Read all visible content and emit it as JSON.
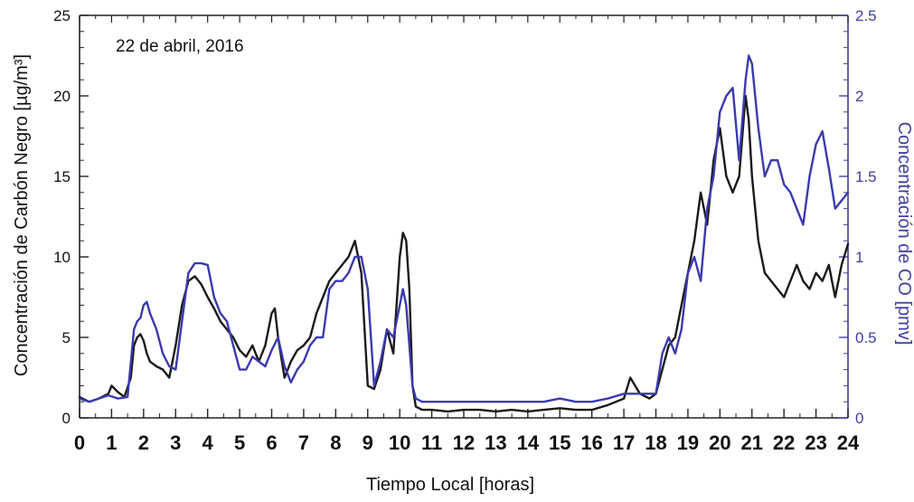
{
  "chart_data": {
    "type": "line",
    "annotation": "22 de abril, 2016",
    "xlabel": "Tiempo Local [horas]",
    "ylabel": "Concentración de Carbón Negro [µg/m³]",
    "y2label": "Concentración de CO [pmv]",
    "xlim": [
      0,
      24
    ],
    "ylim": [
      0,
      25
    ],
    "y2lim": [
      0,
      2.5
    ],
    "xticks": [
      "0",
      "1",
      "2",
      "3",
      "4",
      "5",
      "6",
      "7",
      "8",
      "9",
      "10",
      "11",
      "12",
      "13",
      "14",
      "15",
      "16",
      "17",
      "18",
      "19",
      "20",
      "21",
      "22",
      "23",
      "24"
    ],
    "yticks": [
      "0",
      "5",
      "10",
      "15",
      "20",
      "25"
    ],
    "y2ticks": [
      "0",
      "0.5",
      "1",
      "1.5",
      "2",
      "2.5"
    ],
    "grid": false,
    "colors": {
      "black_carbon": "#1a1a1a",
      "co": "#3a3ab0",
      "right_axis": "#4040a0"
    },
    "series": [
      {
        "axis": "left",
        "color": "#1a1a1a",
        "x": [
          0,
          0.3,
          0.6,
          0.9,
          1.0,
          1.2,
          1.4,
          1.6,
          1.7,
          1.8,
          1.9,
          2.0,
          2.1,
          2.2,
          2.4,
          2.6,
          2.8,
          3.0,
          3.2,
          3.4,
          3.6,
          3.8,
          4.0,
          4.2,
          4.4,
          4.6,
          4.8,
          5.0,
          5.2,
          5.4,
          5.6,
          5.8,
          6.0,
          6.1,
          6.2,
          6.4,
          6.6,
          6.8,
          7.0,
          7.2,
          7.4,
          7.6,
          7.8,
          8.0,
          8.2,
          8.4,
          8.6,
          8.8,
          9.0,
          9.2,
          9.4,
          9.6,
          9.8,
          10.0,
          10.1,
          10.2,
          10.3,
          10.4,
          10.5,
          10.7,
          11.0,
          11.5,
          12.0,
          12.5,
          13.0,
          13.5,
          14.0,
          14.5,
          15.0,
          15.5,
          16.0,
          16.5,
          17.0,
          17.2,
          17.5,
          17.8,
          18.0,
          18.2,
          18.4,
          18.6,
          18.8,
          19.0,
          19.2,
          19.4,
          19.6,
          19.8,
          20.0,
          20.2,
          20.4,
          20.6,
          20.8,
          20.9,
          21.0,
          21.2,
          21.4,
          21.6,
          21.8,
          22.0,
          22.2,
          22.4,
          22.6,
          22.8,
          23.0,
          23.2,
          23.4,
          23.6,
          23.8,
          24.0
        ],
        "values": [
          1.3,
          1.0,
          1.2,
          1.5,
          2.0,
          1.6,
          1.3,
          2.5,
          4.5,
          5.0,
          5.2,
          4.8,
          4.0,
          3.5,
          3.2,
          3.0,
          2.5,
          4.5,
          7.0,
          8.5,
          8.8,
          8.3,
          7.5,
          6.8,
          6.0,
          5.5,
          5.0,
          4.2,
          3.8,
          4.5,
          3.5,
          4.5,
          6.5,
          6.8,
          5.0,
          2.5,
          3.5,
          4.2,
          4.5,
          5.0,
          6.5,
          7.5,
          8.5,
          9.0,
          9.5,
          10.0,
          11.0,
          9.0,
          2.0,
          1.8,
          3.0,
          5.5,
          4.0,
          10.0,
          11.5,
          11.0,
          8.0,
          2.0,
          0.7,
          0.5,
          0.5,
          0.4,
          0.5,
          0.5,
          0.4,
          0.5,
          0.4,
          0.5,
          0.6,
          0.5,
          0.5,
          0.8,
          1.2,
          2.5,
          1.5,
          1.2,
          1.5,
          3.0,
          4.5,
          5.0,
          7.0,
          9.0,
          11.0,
          14.0,
          12.0,
          16.0,
          18.0,
          15.0,
          14.0,
          15.0,
          20.0,
          18.5,
          15.0,
          11.0,
          9.0,
          8.5,
          8.0,
          7.5,
          8.5,
          9.5,
          8.5,
          8.0,
          9.0,
          8.5,
          9.5,
          7.5,
          9.5,
          10.8
        ]
      },
      {
        "axis": "right",
        "color": "#3a3ab0",
        "x": [
          0,
          0.3,
          0.6,
          0.9,
          1.2,
          1.5,
          1.7,
          1.8,
          1.9,
          2.0,
          2.1,
          2.2,
          2.4,
          2.6,
          2.8,
          3.0,
          3.2,
          3.4,
          3.6,
          3.8,
          4.0,
          4.2,
          4.4,
          4.6,
          4.8,
          5.0,
          5.2,
          5.4,
          5.6,
          5.8,
          6.0,
          6.2,
          6.4,
          6.6,
          6.8,
          7.0,
          7.2,
          7.4,
          7.6,
          7.8,
          8.0,
          8.2,
          8.4,
          8.6,
          8.8,
          9.0,
          9.2,
          9.4,
          9.6,
          9.8,
          10.0,
          10.1,
          10.2,
          10.3,
          10.4,
          10.5,
          10.7,
          11.0,
          11.5,
          12.0,
          12.5,
          13.0,
          13.5,
          14.0,
          14.5,
          15.0,
          15.5,
          16.0,
          16.5,
          17.0,
          17.5,
          17.8,
          18.0,
          18.2,
          18.4,
          18.6,
          18.8,
          19.0,
          19.2,
          19.4,
          19.6,
          19.8,
          20.0,
          20.2,
          20.4,
          20.6,
          20.8,
          20.9,
          21.0,
          21.2,
          21.4,
          21.6,
          21.8,
          22.0,
          22.2,
          22.4,
          22.6,
          22.8,
          23.0,
          23.2,
          23.4,
          23.6,
          23.8,
          24.0
        ],
        "values": [
          0.12,
          0.1,
          0.12,
          0.14,
          0.12,
          0.13,
          0.55,
          0.6,
          0.62,
          0.7,
          0.72,
          0.65,
          0.55,
          0.4,
          0.32,
          0.3,
          0.6,
          0.9,
          0.96,
          0.96,
          0.95,
          0.75,
          0.65,
          0.6,
          0.45,
          0.3,
          0.3,
          0.38,
          0.35,
          0.32,
          0.42,
          0.5,
          0.32,
          0.22,
          0.3,
          0.35,
          0.45,
          0.5,
          0.5,
          0.8,
          0.85,
          0.85,
          0.9,
          1.0,
          1.0,
          0.8,
          0.2,
          0.35,
          0.55,
          0.5,
          0.7,
          0.8,
          0.7,
          0.45,
          0.2,
          0.12,
          0.1,
          0.1,
          0.1,
          0.1,
          0.1,
          0.1,
          0.1,
          0.1,
          0.1,
          0.12,
          0.1,
          0.1,
          0.12,
          0.15,
          0.15,
          0.15,
          0.15,
          0.4,
          0.5,
          0.4,
          0.55,
          0.9,
          1.0,
          0.85,
          1.3,
          1.5,
          1.9,
          2.0,
          2.05,
          1.6,
          2.1,
          2.25,
          2.2,
          1.8,
          1.5,
          1.6,
          1.6,
          1.45,
          1.4,
          1.3,
          1.2,
          1.5,
          1.7,
          1.78,
          1.55,
          1.3,
          1.35,
          1.4
        ]
      }
    ]
  }
}
